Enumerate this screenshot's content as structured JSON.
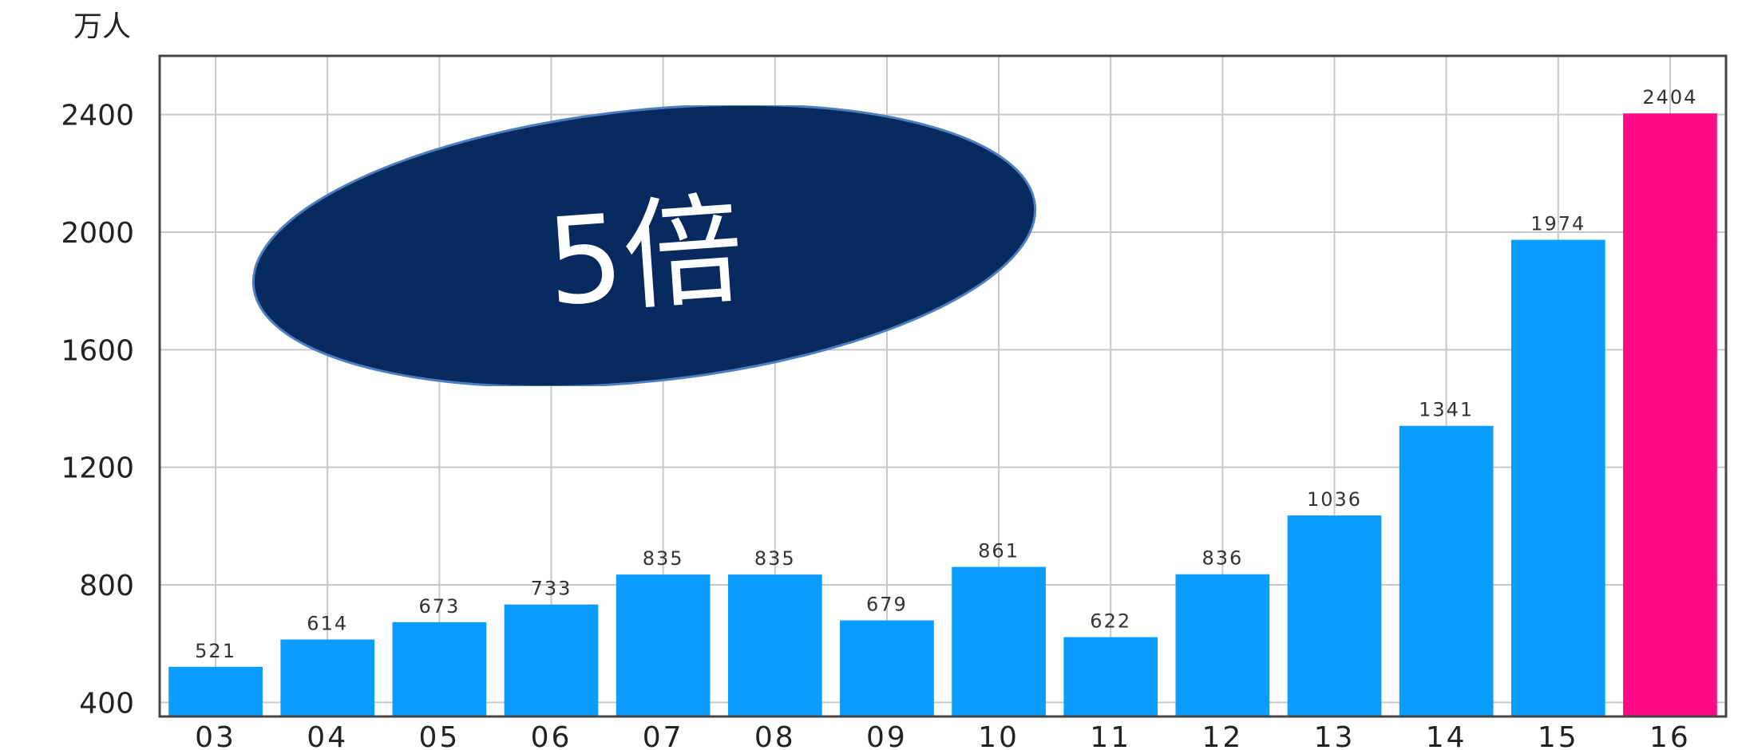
{
  "chart_data": {
    "type": "bar",
    "unit_label": "万人",
    "categories": [
      "03",
      "04",
      "05",
      "06",
      "07",
      "08",
      "09",
      "10",
      "11",
      "12",
      "13",
      "14",
      "15",
      "16"
    ],
    "values": [
      521,
      614,
      673,
      733,
      835,
      835,
      679,
      861,
      622,
      836,
      1036,
      1341,
      1974,
      2404
    ],
    "value_labels": [
      "521",
      "614",
      "673",
      "733",
      "835",
      "835",
      "679",
      "861",
      "622",
      "836",
      "1036",
      "1341",
      "1974",
      "2404"
    ],
    "y_ticks": [
      400,
      800,
      1200,
      1600,
      2000,
      2400
    ],
    "y_tick_labels": [
      "400",
      "800",
      "1200",
      "1600",
      "2000",
      "2400"
    ],
    "ylim": [
      352,
      2600
    ],
    "grid": true,
    "colors": {
      "bar": "#0a9cff",
      "highlight_bar": "#ff0a86",
      "grid": "#c8c8c8",
      "axis": "#444444",
      "callout": "#072a5e"
    },
    "highlight_index": 13,
    "annotation": {
      "text": "5倍"
    }
  }
}
